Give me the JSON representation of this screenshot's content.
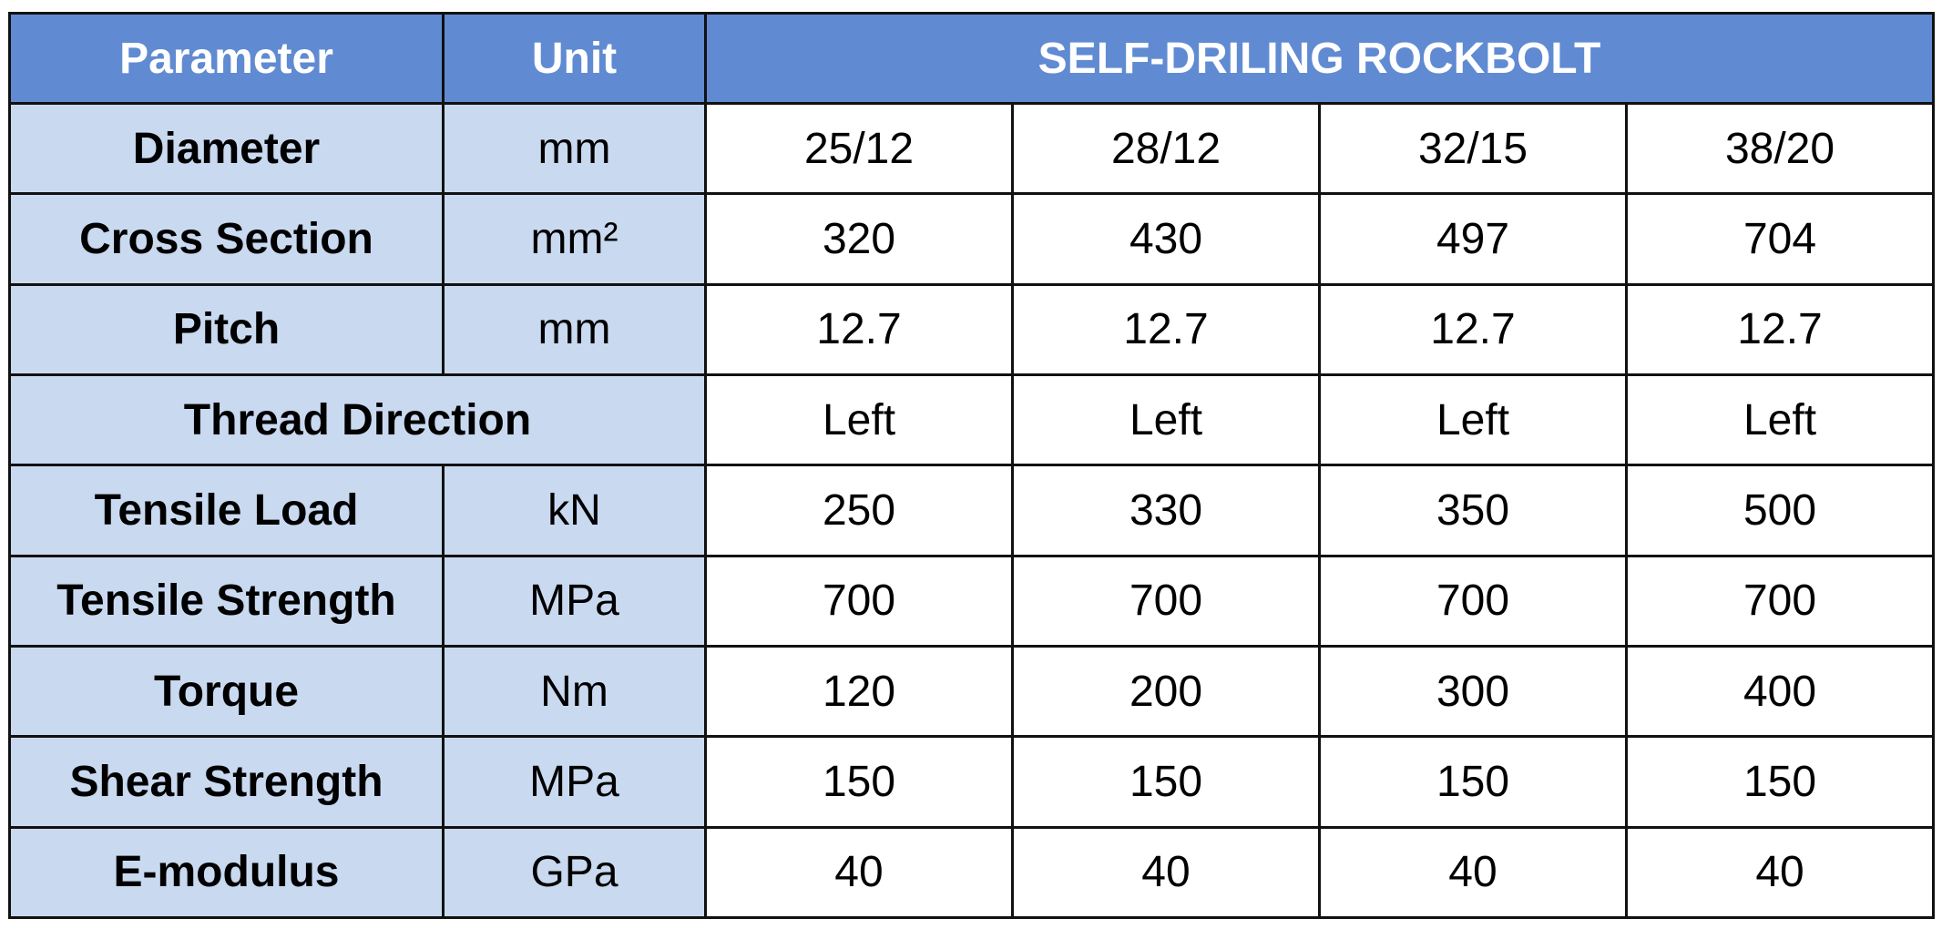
{
  "table": {
    "header": {
      "parameter": "Parameter",
      "unit": "Unit",
      "product": "SELF-DRILING ROCKBOLT"
    },
    "rows": [
      {
        "parameter": "Diameter",
        "unit": "mm",
        "values": [
          "25/12",
          "28/12",
          "32/15",
          "38/20"
        ]
      },
      {
        "parameter": "Cross Section",
        "unit": "mm²",
        "values": [
          320,
          430,
          497,
          704
        ]
      },
      {
        "parameter": "Pitch",
        "unit": "mm",
        "values": [
          12.7,
          12.7,
          12.7,
          12.7
        ]
      },
      {
        "parameter": "Thread Direction",
        "values": [
          "Left",
          "Left",
          "Left",
          "Left"
        ]
      },
      {
        "parameter": "Tensile Load",
        "unit": "kN",
        "values": [
          250,
          330,
          350,
          500
        ]
      },
      {
        "parameter": "Tensile Strength",
        "unit": "MPa",
        "values": [
          700,
          700,
          700,
          700
        ]
      },
      {
        "parameter": "Torque",
        "unit": "Nm",
        "values": [
          120,
          200,
          300,
          400
        ]
      },
      {
        "parameter": "Shear Strength",
        "unit": "MPa",
        "values": [
          150,
          150,
          150,
          150
        ]
      },
      {
        "parameter": "E-modulus",
        "unit": "GPa",
        "values": [
          40,
          40,
          40,
          40
        ]
      }
    ]
  }
}
